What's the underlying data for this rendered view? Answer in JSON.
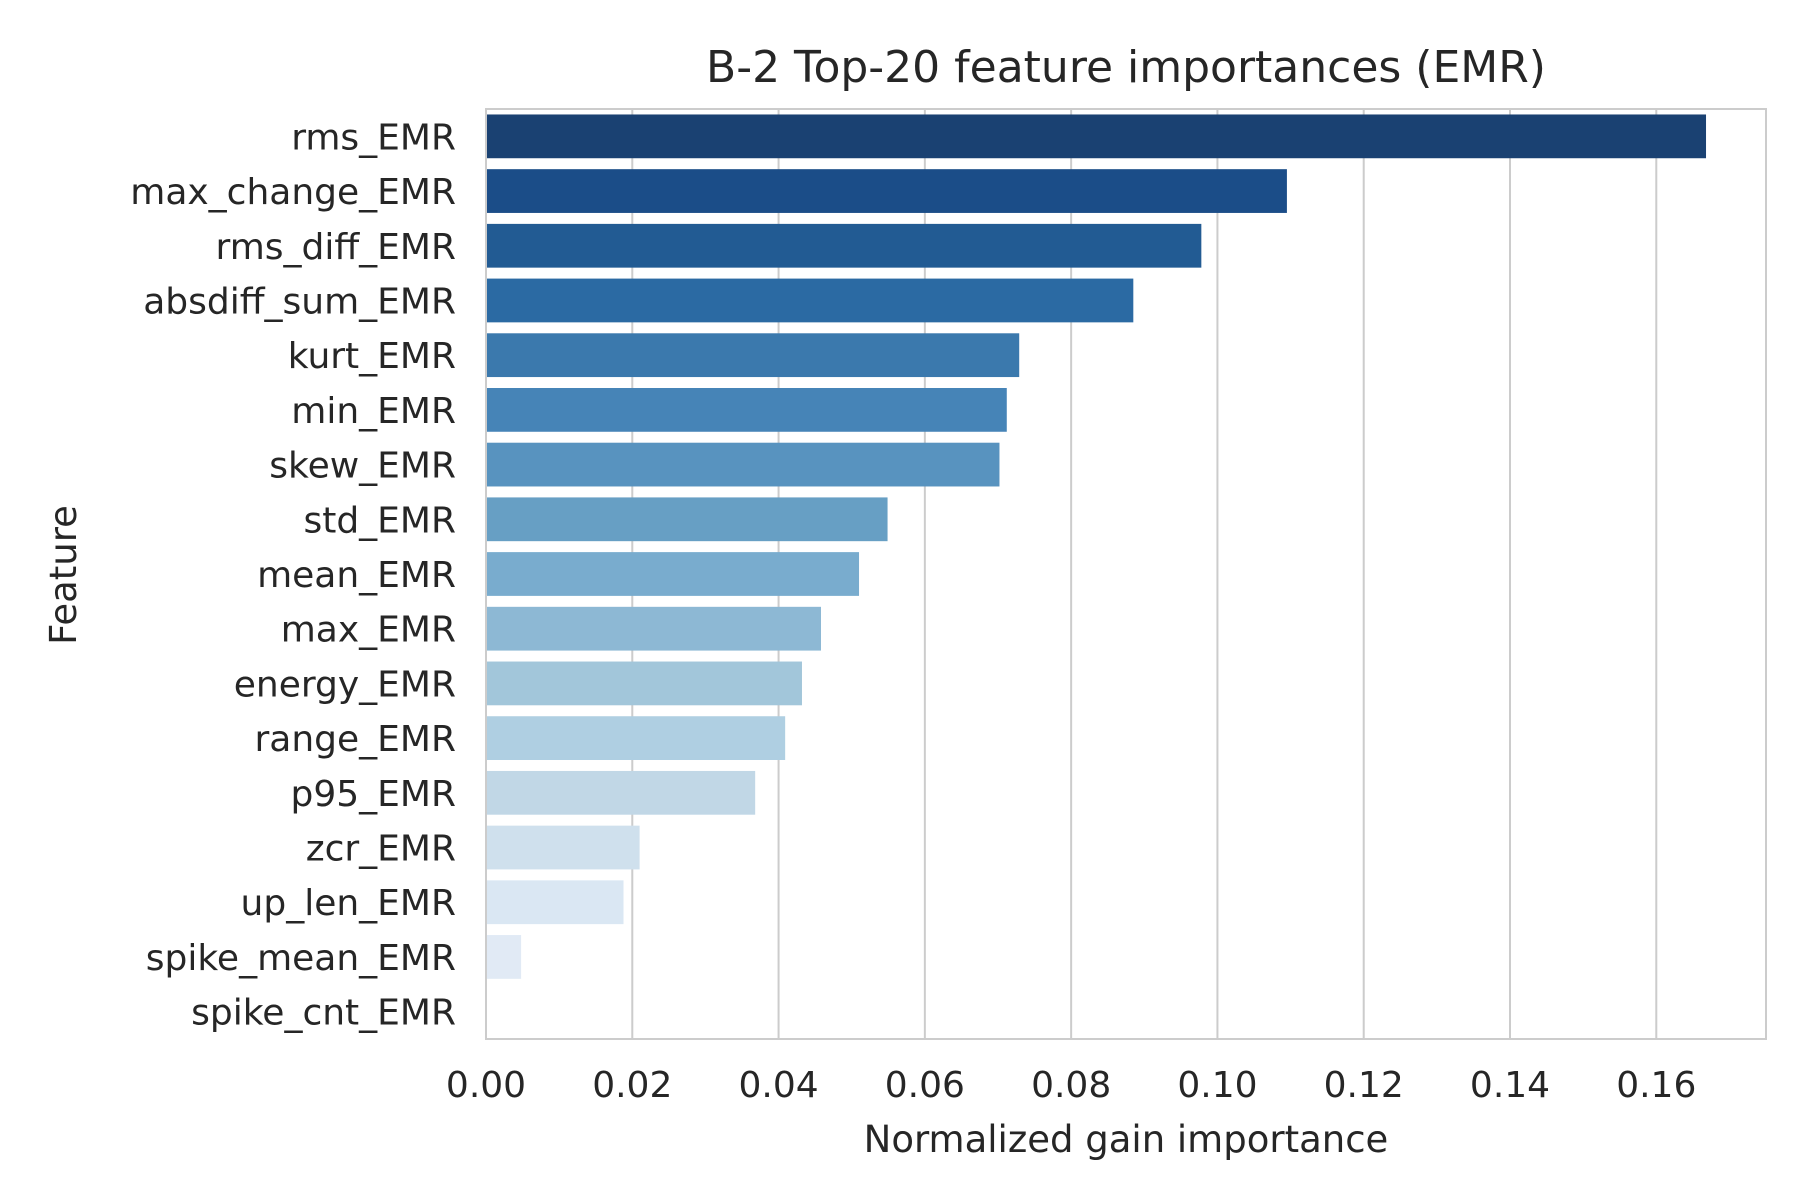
{
  "chart_data": {
    "type": "bar",
    "orientation": "horizontal",
    "title": "B-2  Top-20 feature importances (EMR)",
    "xlabel": "Normalized gain importance",
    "ylabel": "Feature",
    "xlim": [
      0,
      0.175
    ],
    "xticks": [
      0.0,
      0.02,
      0.04,
      0.06,
      0.08,
      0.1,
      0.12,
      0.14,
      0.16
    ],
    "xtick_labels": [
      "0.00",
      "0.02",
      "0.04",
      "0.06",
      "0.08",
      "0.10",
      "0.12",
      "0.14",
      "0.16"
    ],
    "grid": "vertical",
    "categories": [
      "rms_EMR",
      "max_change_EMR",
      "rms_diff_EMR",
      "absdiff_sum_EMR",
      "kurt_EMR",
      "min_EMR",
      "skew_EMR",
      "std_EMR",
      "mean_EMR",
      "max_EMR",
      "energy_EMR",
      "range_EMR",
      "p95_EMR",
      "zcr_EMR",
      "up_len_EMR",
      "spike_mean_EMR",
      "spike_cnt_EMR"
    ],
    "values": [
      0.1668,
      0.1095,
      0.0978,
      0.0885,
      0.0729,
      0.0712,
      0.0702,
      0.0549,
      0.051,
      0.0458,
      0.0432,
      0.0409,
      0.0368,
      0.021,
      0.0188,
      0.0048,
      0.0
    ],
    "colors": [
      "#1a4172",
      "#1b4d88",
      "#225b93",
      "#2b6aa3",
      "#3b79ad",
      "#4684b7",
      "#5893bf",
      "#679fc4",
      "#79acce",
      "#8db8d4",
      "#a2c6da",
      "#afcfe2",
      "#c1d7e6",
      "#cfe0ed",
      "#dae7f3",
      "#e1eaf5",
      "#eaf1f8"
    ]
  }
}
